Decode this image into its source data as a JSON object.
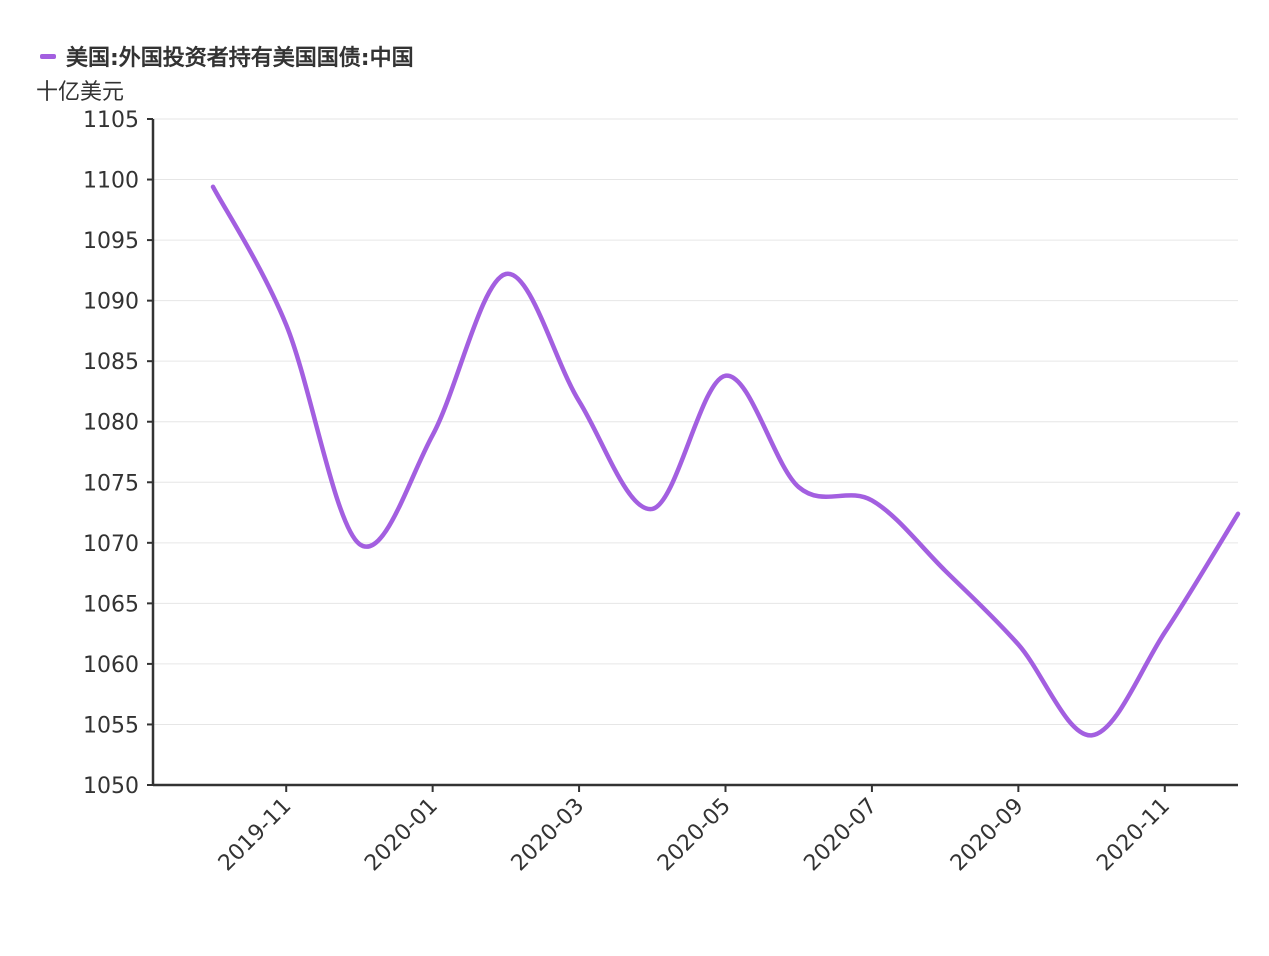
{
  "chart_data": {
    "type": "line",
    "unit_label": "十亿美元",
    "series": [
      {
        "name": "美国:外国投资者持有美国国债:中国",
        "color": "#a35fe0",
        "x": [
          "2019-10",
          "2019-11",
          "2019-12",
          "2020-01",
          "2020-02",
          "2020-03",
          "2020-04",
          "2020-05",
          "2020-06",
          "2020-07",
          "2020-08",
          "2020-09",
          "2020-10",
          "2020-11",
          "2020-12"
        ],
        "values": [
          1099.4,
          1088.0,
          1069.9,
          1078.9,
          1092.2,
          1081.7,
          1072.8,
          1083.8,
          1074.6,
          1073.5,
          1067.7,
          1061.6,
          1054.1,
          1062.6,
          1072.4
        ]
      }
    ],
    "ylim": [
      1050,
      1105
    ],
    "yticks": [
      "1050",
      "1055",
      "1060",
      "1065",
      "1070",
      "1075",
      "1080",
      "1085",
      "1090",
      "1095",
      "1100",
      "1105"
    ],
    "xticks": [
      "2019-11",
      "2020-01",
      "2020-03",
      "2020-05",
      "2020-07",
      "2020-09",
      "2020-11"
    ],
    "xlim": [
      "2019-10",
      "2020-12"
    ],
    "grid": true,
    "legend_position": "top-left"
  }
}
